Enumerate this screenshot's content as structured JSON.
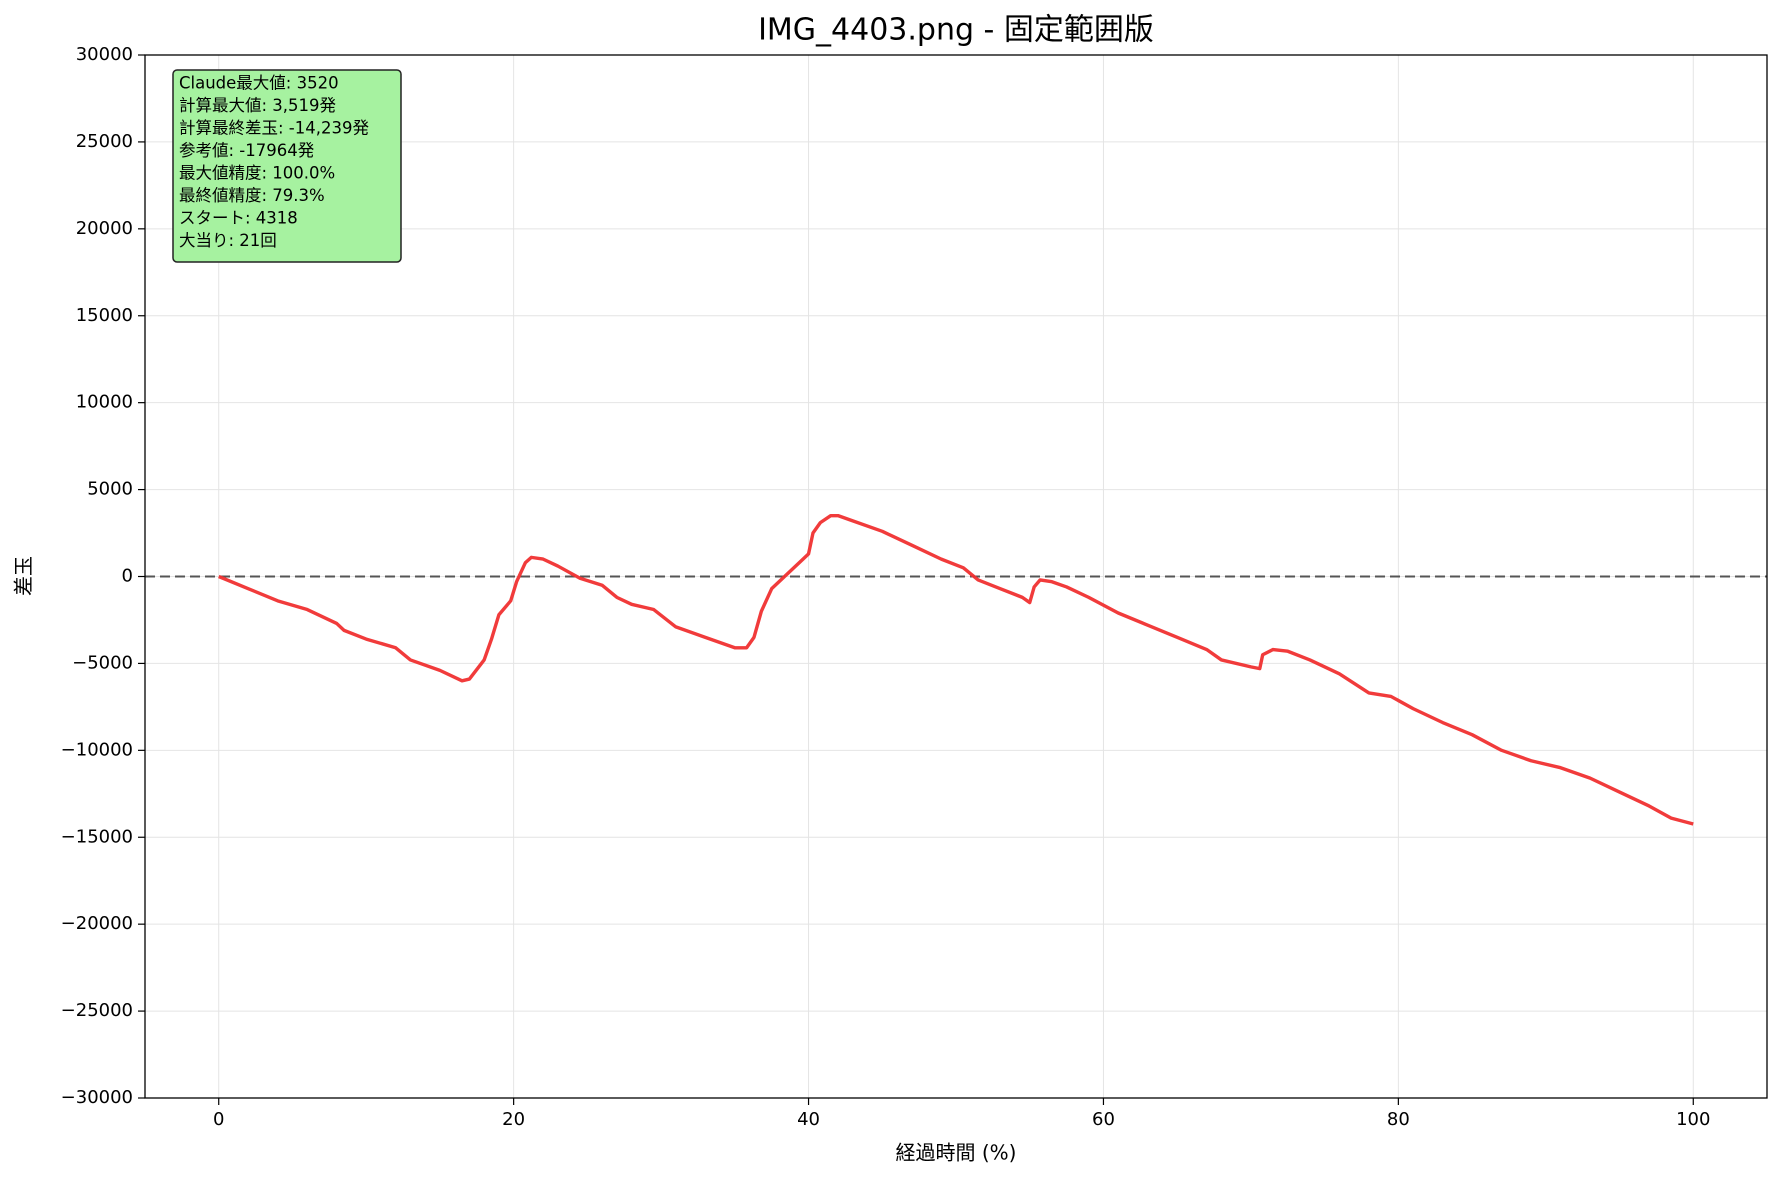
{
  "chart_data": {
    "type": "line",
    "title": "IMG_4403.png - 固定範囲版",
    "xlabel": "経過時間 (%)",
    "ylabel": "差玉",
    "xlim": [
      -5,
      105
    ],
    "ylim": [
      -30000,
      30000
    ],
    "xticks": [
      0,
      20,
      40,
      60,
      80,
      100
    ],
    "yticks": [
      {
        "value": -30000,
        "label": "−30000"
      },
      {
        "value": -25000,
        "label": "−25000"
      },
      {
        "value": -20000,
        "label": "−20000"
      },
      {
        "value": -15000,
        "label": "−15000"
      },
      {
        "value": -10000,
        "label": "−10000"
      },
      {
        "value": -5000,
        "label": "−5000"
      },
      0,
      5000,
      10000,
      15000,
      20000,
      25000,
      30000
    ],
    "grid": true,
    "reference_line": {
      "y": 0,
      "color": "#555555",
      "style": "dashed"
    },
    "annotation_box": {
      "lines": [
        "Claude最大値: 3520",
        "計算最大値: 3,519発",
        "計算最終差玉: -14,239発",
        "参考値: -17964発",
        "最大値精度: 100.0%",
        "最終値精度: 79.3%",
        "スタート: 4318",
        "大当り: 21回"
      ],
      "color": "#a6f2a0"
    },
    "x": [
      0,
      2,
      4,
      6,
      8,
      8.5,
      10,
      12,
      13,
      15,
      16.5,
      17,
      18,
      18.5,
      19,
      19.8,
      20.2,
      20.8,
      21.2,
      22,
      23,
      24.5,
      26,
      27,
      28,
      29.5,
      31,
      33,
      35,
      35.8,
      36.3,
      36.8,
      37.5,
      38.5,
      39.5,
      40,
      40.3,
      40.8,
      41.5,
      42,
      43,
      45,
      47,
      49,
      50.5,
      51.5,
      53,
      54.5,
      55,
      55.3,
      55.7,
      56.5,
      57.5,
      59,
      61,
      63,
      65,
      67,
      68,
      70,
      70.6,
      70.8,
      71.5,
      72.5,
      74,
      76,
      78,
      79.5,
      81,
      83,
      85,
      87,
      89,
      91,
      93,
      95,
      97,
      98.5,
      100
    ],
    "series": [
      {
        "name": "差玉",
        "color": "#f03030",
        "values": [
          0,
          -700,
          -1400,
          -1900,
          -2700,
          -3100,
          -3600,
          -4100,
          -4800,
          -5400,
          -6000,
          -5900,
          -4800,
          -3600,
          -2200,
          -1400,
          -300,
          800,
          1100,
          1000,
          600,
          -100,
          -500,
          -1200,
          -1600,
          -1900,
          -2900,
          -3500,
          -4100,
          -4100,
          -3500,
          -2000,
          -700,
          100,
          900,
          1300,
          2500,
          3100,
          3500,
          3500,
          3200,
          2600,
          1800,
          1000,
          500,
          -200,
          -700,
          -1200,
          -1500,
          -600,
          -200,
          -300,
          -600,
          -1200,
          -2100,
          -2800,
          -3500,
          -4200,
          -4800,
          -5200,
          -5300,
          -4500,
          -4200,
          -4300,
          -4800,
          -5600,
          -6700,
          -6900,
          -7600,
          -8400,
          -9100,
          -10000,
          -10600,
          -11000,
          -11600,
          -12400,
          -13200,
          -13900,
          -14239
        ]
      }
    ]
  }
}
